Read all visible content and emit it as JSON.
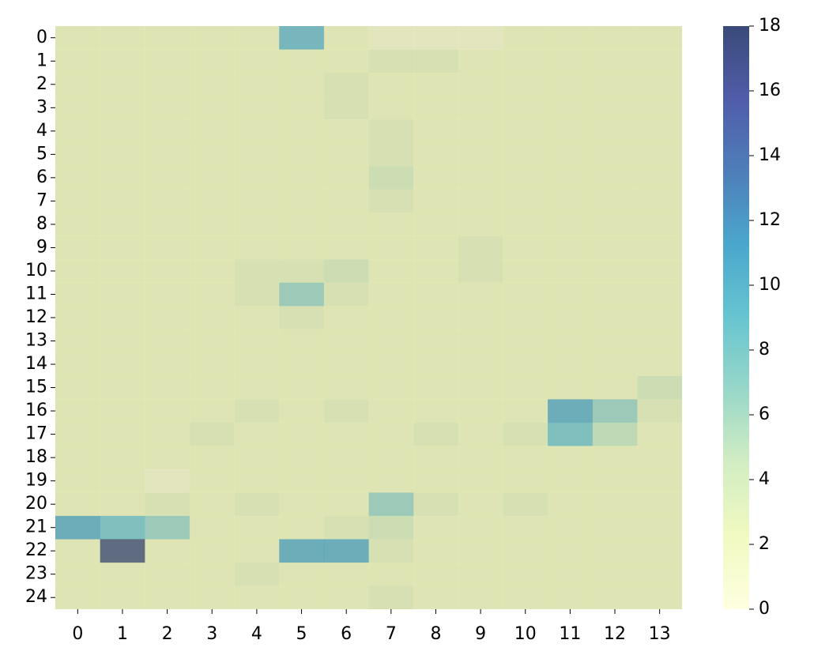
{
  "chart_data": {
    "type": "heatmap",
    "colormap": "YlGnBu",
    "x": [
      0,
      1,
      2,
      3,
      4,
      5,
      6,
      7,
      8,
      9,
      10,
      11,
      12,
      13
    ],
    "y": [
      0,
      1,
      2,
      3,
      4,
      5,
      6,
      7,
      8,
      9,
      10,
      11,
      12,
      13,
      14,
      15,
      16,
      17,
      18,
      19,
      20,
      21,
      22,
      23,
      24
    ],
    "values": [
      [
        2,
        2,
        2,
        2,
        2,
        10,
        2,
        1,
        1,
        1,
        2,
        2,
        2,
        2
      ],
      [
        2,
        2,
        2,
        2,
        2,
        2,
        2,
        3,
        3,
        2,
        2,
        2,
        2,
        2
      ],
      [
        2,
        2,
        2,
        2,
        2,
        2,
        3,
        2,
        2,
        2,
        2,
        2,
        2,
        2
      ],
      [
        2,
        2,
        2,
        2,
        2,
        2,
        3,
        2,
        2,
        2,
        2,
        2,
        2,
        2
      ],
      [
        2,
        2,
        2,
        2,
        2,
        2,
        2,
        3,
        2,
        2,
        2,
        2,
        2,
        2
      ],
      [
        2,
        2,
        2,
        2,
        2,
        2,
        2,
        3,
        2,
        2,
        2,
        2,
        2,
        2
      ],
      [
        2,
        2,
        2,
        2,
        2,
        2,
        2,
        4,
        2,
        2,
        2,
        2,
        2,
        2
      ],
      [
        2,
        2,
        2,
        2,
        2,
        2,
        2,
        3,
        2,
        2,
        2,
        2,
        2,
        2
      ],
      [
        2,
        2,
        2,
        2,
        2,
        2,
        2,
        2,
        2,
        2,
        2,
        2,
        2,
        2
      ],
      [
        2,
        2,
        2,
        2,
        2,
        2,
        2,
        2,
        2,
        3,
        2,
        2,
        2,
        2
      ],
      [
        2,
        2,
        2,
        2,
        3,
        3,
        4,
        2,
        2,
        3,
        2,
        2,
        2,
        2
      ],
      [
        2,
        2,
        2,
        2,
        3,
        7,
        3,
        2,
        2,
        2,
        2,
        2,
        2,
        2
      ],
      [
        2,
        2,
        2,
        2,
        2,
        3,
        2,
        2,
        2,
        2,
        2,
        2,
        2,
        2
      ],
      [
        2,
        2,
        2,
        2,
        2,
        2,
        2,
        2,
        2,
        2,
        2,
        2,
        2,
        2
      ],
      [
        2,
        2,
        2,
        2,
        2,
        2,
        2,
        2,
        2,
        2,
        2,
        2,
        2,
        2
      ],
      [
        2,
        2,
        2,
        2,
        2,
        2,
        2,
        2,
        2,
        2,
        2,
        2,
        2,
        4
      ],
      [
        2,
        2,
        2,
        2,
        3,
        2,
        3,
        2,
        2,
        2,
        2,
        11,
        7,
        3
      ],
      [
        2,
        2,
        2,
        3,
        2,
        2,
        2,
        2,
        3,
        2,
        3,
        9,
        5,
        2
      ],
      [
        2,
        2,
        2,
        2,
        2,
        2,
        2,
        2,
        2,
        2,
        2,
        2,
        2,
        2
      ],
      [
        2,
        2,
        1,
        2,
        2,
        2,
        2,
        2,
        2,
        2,
        2,
        2,
        2,
        2
      ],
      [
        2,
        2,
        3,
        2,
        3,
        2,
        2,
        7,
        3,
        2,
        3,
        2,
        2,
        2
      ],
      [
        11,
        9,
        7,
        2,
        2,
        2,
        3,
        4,
        2,
        2,
        2,
        2,
        2,
        2
      ],
      [
        2,
        18,
        2,
        2,
        2,
        11,
        11,
        3,
        2,
        2,
        2,
        2,
        2,
        2
      ],
      [
        2,
        2,
        2,
        2,
        3,
        2,
        2,
        2,
        2,
        2,
        2,
        2,
        2,
        2
      ],
      [
        2,
        2,
        2,
        2,
        2,
        2,
        2,
        3,
        2,
        2,
        2,
        2,
        2,
        2
      ]
    ],
    "clim": [
      0,
      18
    ],
    "cticks": [
      0,
      2,
      4,
      6,
      8,
      10,
      12,
      14,
      16,
      18
    ]
  }
}
